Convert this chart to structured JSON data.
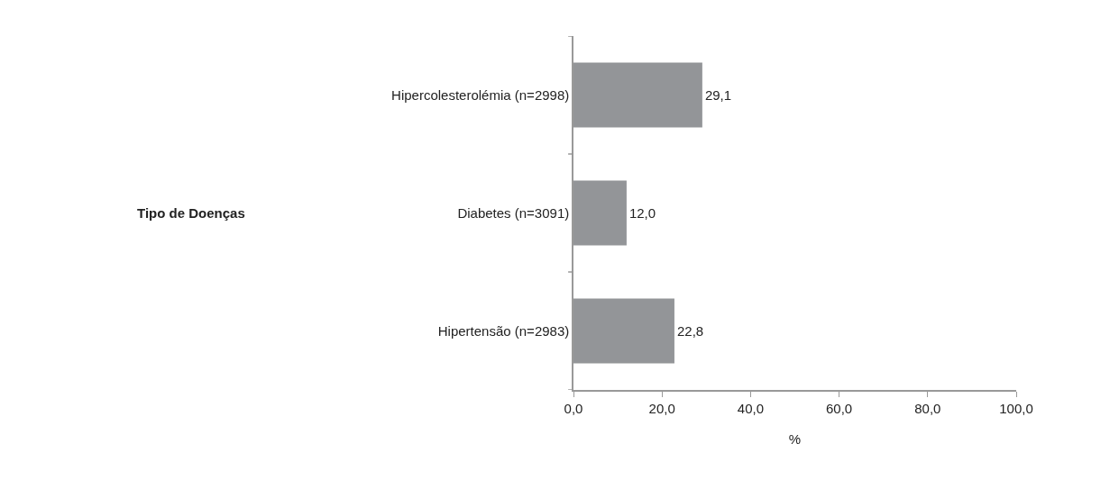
{
  "chart_data": {
    "type": "bar",
    "orientation": "horizontal",
    "categories": [
      "Hipercolesterolémia (n=2998)",
      "Diabetes (n=3091)",
      "Hipertensão (n=2983)"
    ],
    "values": [
      29.1,
      12.0,
      22.8
    ],
    "value_labels": [
      "29,1",
      "12,0",
      "22,8"
    ],
    "color": "#939598",
    "annotations": [
      "Tipo de Doenças"
    ],
    "xlabel": "%",
    "xlim": [
      0,
      100
    ],
    "xticks": [
      {
        "value": 0,
        "label": "0,0"
      },
      {
        "value": 20,
        "label": "20,0"
      },
      {
        "value": 40,
        "label": "40,0"
      },
      {
        "value": 60,
        "label": "60,0"
      },
      {
        "value": 80,
        "label": "80,0"
      },
      {
        "value": 100,
        "label": "100,0"
      }
    ],
    "legend": false
  }
}
